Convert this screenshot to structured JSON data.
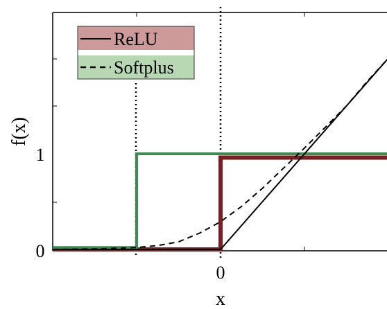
{
  "chart_data": {
    "type": "line",
    "xlabel": "x",
    "ylabel": "f(x)",
    "xlim": [
      -2,
      2
    ],
    "ylim": [
      -0.03,
      2.4
    ],
    "x_ticks": [
      0
    ],
    "y_ticks": [
      0,
      1
    ],
    "x_tick_labels": [
      "0"
    ],
    "y_tick_labels": [
      "0",
      "1"
    ],
    "grid": false,
    "legend_position": "top-left",
    "series": [
      {
        "name": "ReLU",
        "style": "solid",
        "color": "#000000",
        "x": [
          -2,
          0,
          2
        ],
        "y": [
          0,
          0,
          2
        ]
      },
      {
        "name": "Softplus",
        "style": "dashed",
        "color": "#000000",
        "x": [
          -2,
          -1.5,
          -1,
          -0.75,
          -0.5,
          -0.25,
          0,
          0.25,
          0.5,
          0.75,
          1,
          1.25,
          1.5,
          1.75,
          2
        ],
        "y": [
          0.0,
          0.005,
          0.02,
          0.04,
          0.08,
          0.17,
          0.29,
          0.45,
          0.64,
          0.85,
          1.06,
          1.28,
          1.5,
          1.76,
          2.0
        ]
      }
    ],
    "step_functions": [
      {
        "color": "#7a1f1f",
        "x": [
          -2,
          0,
          0,
          2
        ],
        "y": [
          0,
          0,
          0.96,
          0.96
        ]
      },
      {
        "color": "#3f8a50",
        "x": [
          -2,
          -1,
          -1,
          2
        ],
        "y": [
          0.02,
          0.02,
          1.0,
          1.0
        ]
      }
    ],
    "vertical_dotted_lines_x": [
      -1,
      0
    ],
    "colors": {
      "legend_relu_bg": "#cd9a9a",
      "legend_softplus_bg": "#b8d8b4"
    }
  }
}
